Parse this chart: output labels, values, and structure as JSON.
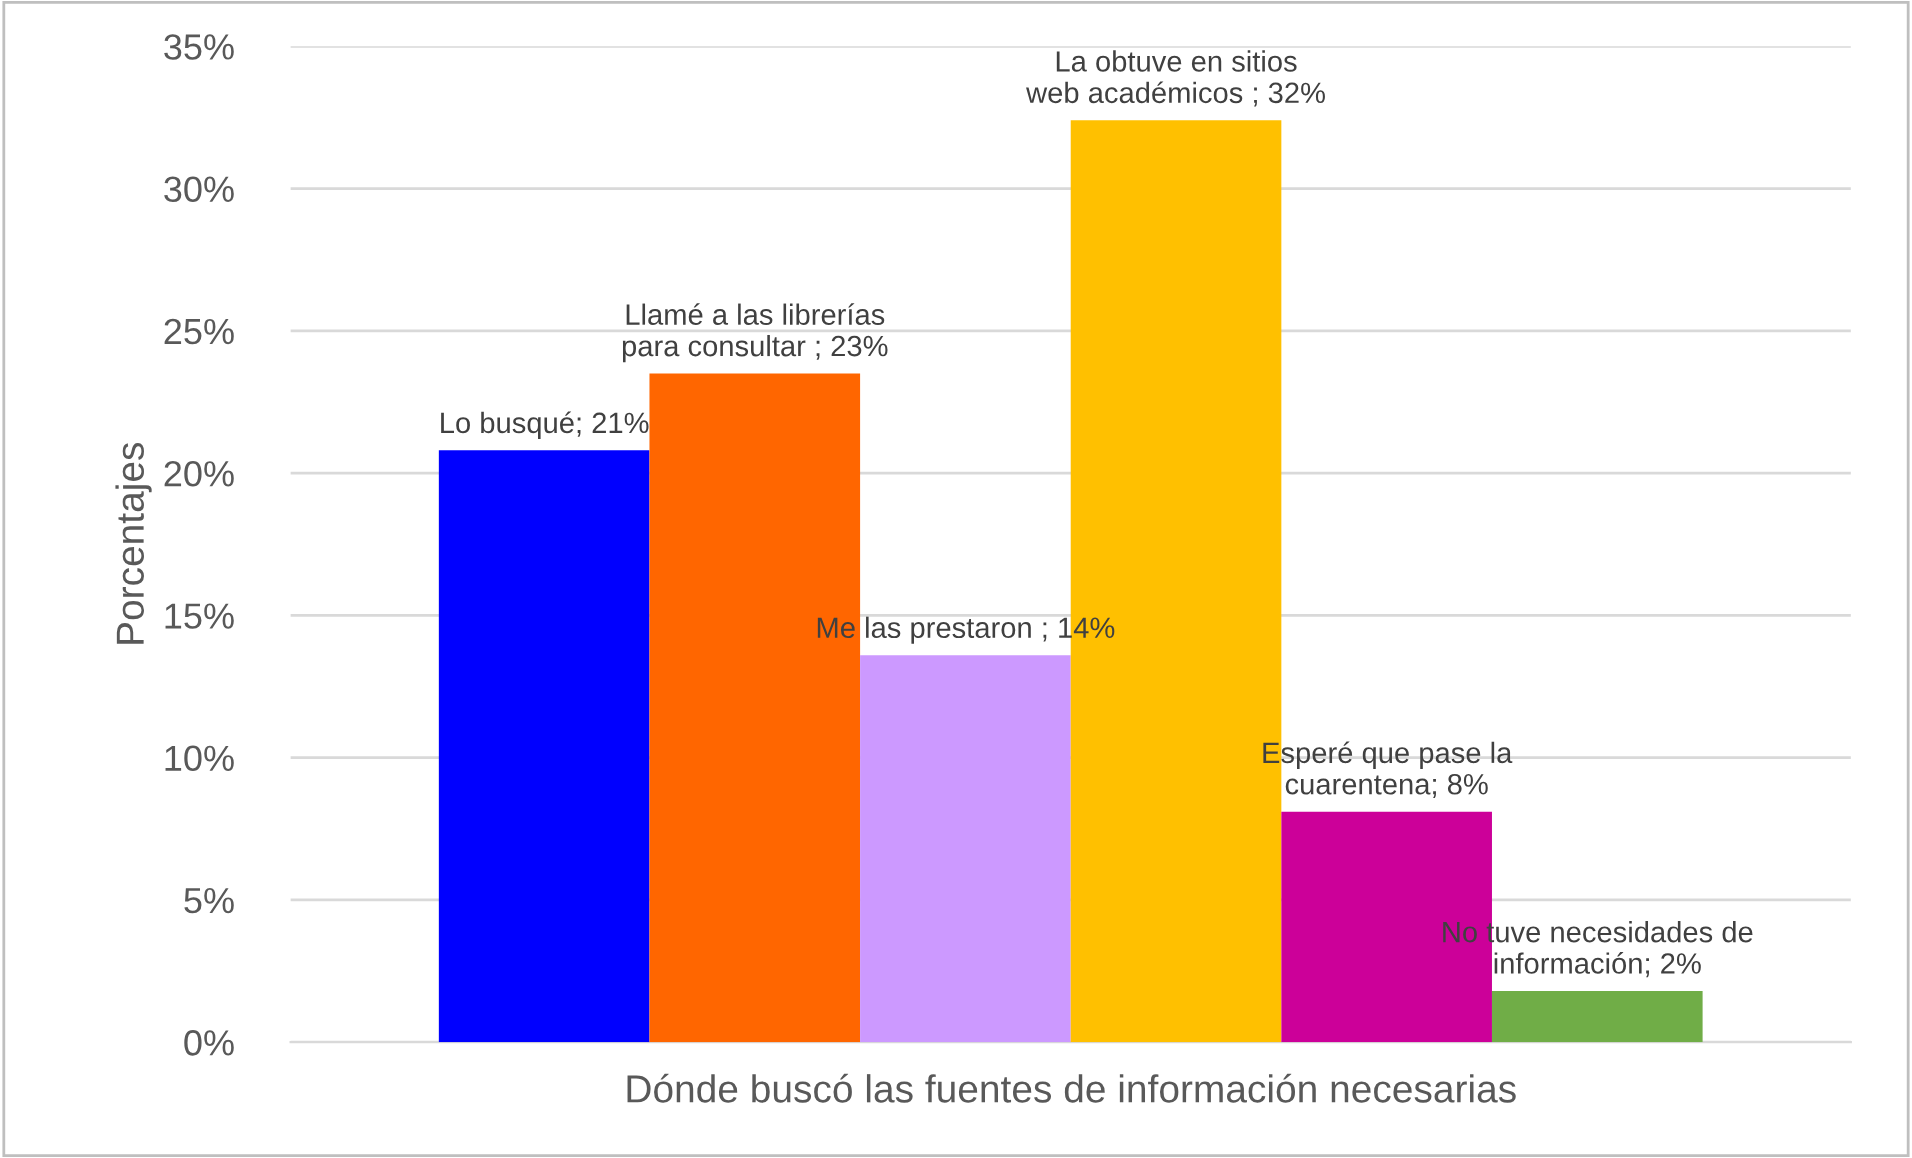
{
  "chart_data": {
    "type": "bar",
    "categories": [
      null
    ],
    "series": [
      {
        "name": "Lo busqué;",
        "color": "#0000ff",
        "values": [
          20.8
        ],
        "value_labels": [
          "21%"
        ]
      },
      {
        "name": "Llamé a las librerías para consultar ;",
        "color": "#ff6600",
        "values": [
          23.5
        ],
        "value_labels": [
          "23%"
        ]
      },
      {
        "name": "Me las prestaron ;",
        "color": "#cc99ff",
        "values": [
          13.6
        ],
        "value_labels": [
          "14%"
        ]
      },
      {
        "name": "La obtuve en sitios web académicos ;",
        "color": "#ffc000",
        "values": [
          32.4
        ],
        "value_labels": [
          "32%"
        ]
      },
      {
        "name": "Esperé que pase la cuarentena;",
        "color": "#cc0099",
        "values": [
          8.1
        ],
        "value_labels": [
          "8%"
        ]
      },
      {
        "name": "No tuve necesidades de información;",
        "color": "#70ad47",
        "values": [
          1.8
        ],
        "value_labels": [
          "2%"
        ]
      }
    ],
    "xlabel": "Dónde buscó las fuentes de información necesarias",
    "ylabel": "Porcentajes",
    "ylim": [
      0,
      35
    ],
    "yticks": [
      {
        "value": 0,
        "label": "0%"
      },
      {
        "value": 5,
        "label": "5%"
      },
      {
        "value": 10,
        "label": "10%"
      },
      {
        "value": 15,
        "label": "15%"
      },
      {
        "value": 20,
        "label": "20%"
      },
      {
        "value": 25,
        "label": "25%"
      },
      {
        "value": 30,
        "label": "30%"
      },
      {
        "value": 35,
        "label": "35%"
      }
    ],
    "grid": "y",
    "legend": false
  }
}
